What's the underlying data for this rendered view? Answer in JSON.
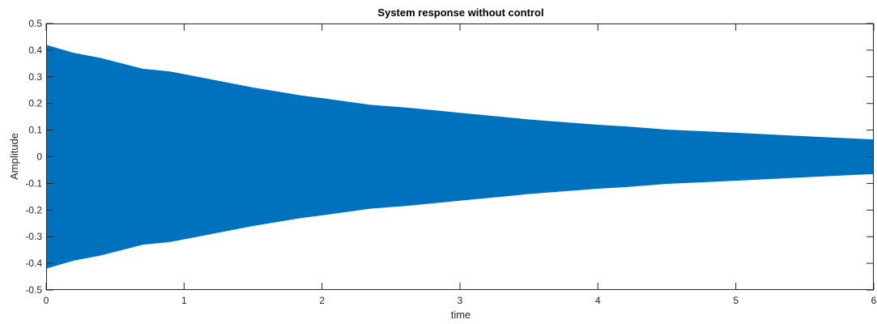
{
  "chart_data": {
    "type": "area",
    "title": "System response without control",
    "xlabel": "time",
    "ylabel": "Amplitude",
    "xlim": [
      0,
      6
    ],
    "ylim": [
      -0.5,
      0.5
    ],
    "xticks": [
      0,
      1,
      2,
      3,
      4,
      5,
      6
    ],
    "yticks": [
      -0.5,
      -0.4,
      -0.3,
      -0.2,
      -0.1,
      0,
      0.1,
      0.2,
      0.3,
      0.4,
      0.5
    ],
    "xtick_labels": [
      "0",
      "1",
      "2",
      "3",
      "4",
      "5",
      "6"
    ],
    "ytick_labels": [
      "-0.5",
      "-0.4",
      "-0.3",
      "-0.2",
      "-0.1",
      "0",
      "0.1",
      "0.2",
      "0.3",
      "0.4",
      "0.5"
    ],
    "grid": false,
    "series": [
      {
        "color": "#0072BD",
        "envelope_x": [
          0,
          0.2,
          0.4,
          0.7,
          0.9,
          1.2,
          1.5,
          1.85,
          2.0,
          2.35,
          2.6,
          3.0,
          3.5,
          4.0,
          4.2,
          4.5,
          5.0,
          5.5,
          6.0
        ],
        "envelope_upper": [
          0.42,
          0.39,
          0.37,
          0.33,
          0.32,
          0.29,
          0.26,
          0.23,
          0.22,
          0.195,
          0.185,
          0.165,
          0.14,
          0.12,
          0.114,
          0.102,
          0.09,
          0.077,
          0.065
        ],
        "envelope_lower": [
          -0.42,
          -0.39,
          -0.37,
          -0.33,
          -0.32,
          -0.29,
          -0.26,
          -0.23,
          -0.22,
          -0.195,
          -0.185,
          -0.165,
          -0.14,
          -0.12,
          -0.114,
          -0.102,
          -0.09,
          -0.077,
          -0.065
        ]
      }
    ]
  }
}
